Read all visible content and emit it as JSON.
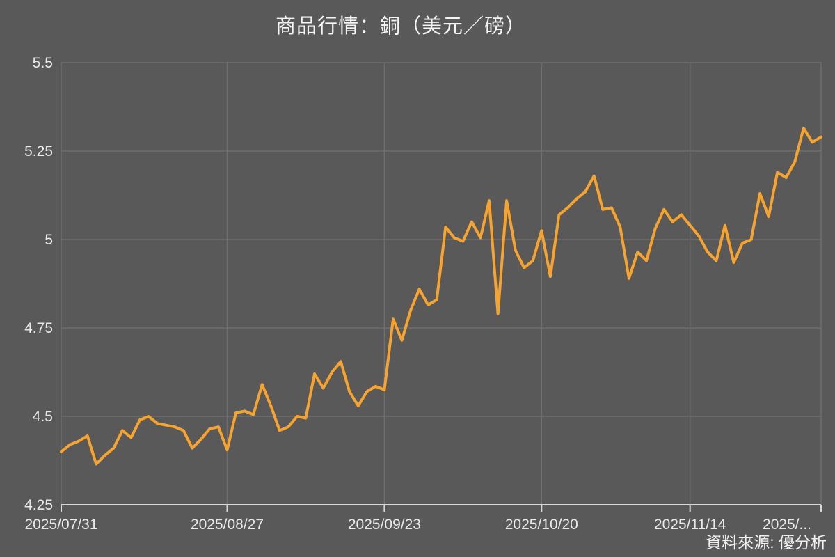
{
  "title": "商品行情：銅（美元／磅）",
  "source_note": "資料來源: 優分析",
  "colors": {
    "background": "#595959",
    "line": "#F6A42F",
    "grid": "#6E6E6E",
    "axis": "#D8D8D8",
    "tick_text": "#E9E9E9",
    "title_text": "#F5F5F5",
    "source_text": "#F0F0F0"
  },
  "chart_data": {
    "type": "line",
    "title": "商品行情：銅（美元／磅）",
    "ylabel": "",
    "xlabel": "",
    "ylim": [
      4.25,
      5.5
    ],
    "grid": true,
    "legend": false,
    "y_tick_values": [
      4.25,
      4.5,
      4.75,
      5,
      5.25,
      5.5
    ],
    "y_tick_labels": [
      "4.25",
      "4.5",
      "4.75",
      "5",
      "5.25",
      "5.5"
    ],
    "x_tick_labels": [
      "2025/07/31",
      "2025/08/27",
      "2025/09/23",
      "2025/10/20",
      "2025/11/14",
      "2025/..."
    ],
    "x_tick_indices": [
      0,
      19,
      37,
      55,
      72,
      87
    ],
    "values": [
      4.4,
      4.42,
      4.43,
      4.445,
      4.365,
      4.39,
      4.41,
      4.46,
      4.44,
      4.49,
      4.5,
      4.48,
      4.475,
      4.47,
      4.46,
      4.41,
      4.435,
      4.465,
      4.47,
      4.405,
      4.51,
      4.515,
      4.505,
      4.59,
      4.53,
      4.46,
      4.47,
      4.5,
      4.495,
      4.62,
      4.58,
      4.625,
      4.655,
      4.57,
      4.53,
      4.57,
      4.585,
      4.575,
      4.775,
      4.715,
      4.8,
      4.86,
      4.815,
      4.83,
      5.035,
      5.005,
      4.995,
      5.05,
      5.005,
      5.11,
      4.79,
      5.11,
      4.97,
      4.92,
      4.94,
      5.025,
      4.895,
      5.07,
      5.09,
      5.115,
      5.135,
      5.18,
      5.085,
      5.09,
      5.035,
      4.89,
      4.965,
      4.94,
      5.03,
      5.085,
      5.05,
      5.07,
      5.04,
      5.01,
      4.965,
      4.94,
      5.04,
      4.935,
      4.99,
      5.0,
      5.13,
      5.065,
      5.19,
      5.175,
      5.22,
      5.315,
      5.275,
      5.29
    ]
  }
}
